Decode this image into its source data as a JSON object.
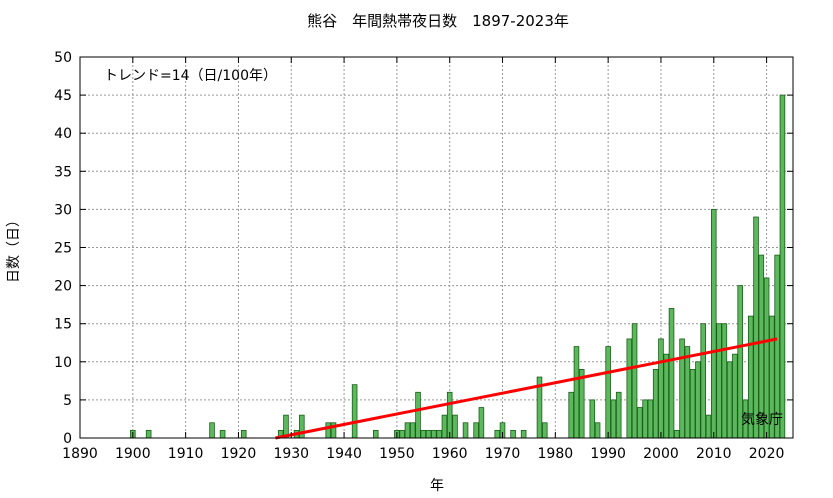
{
  "chart_data": {
    "type": "bar",
    "title": "熊谷　年間熱帯夜日数　1897-2023年",
    "xlabel": "年",
    "ylabel": "日数（日）",
    "annotation": "トレンド=14（日/100年）",
    "credit": "気象庁",
    "xlim": [
      1890,
      2025
    ],
    "ylim": [
      0,
      50
    ],
    "x_ticks": [
      1890,
      1900,
      1910,
      1920,
      1930,
      1940,
      1950,
      1960,
      1970,
      1980,
      1990,
      2000,
      2010,
      2020
    ],
    "y_ticks": [
      0,
      5,
      10,
      15,
      20,
      25,
      30,
      35,
      40,
      45,
      50
    ],
    "grid": "dashed",
    "bar_color": "#5cb85c",
    "bar_edge_color": "#1a5e1a",
    "trend_color": "#ff0000",
    "series": [
      {
        "values": [
          [
            1900,
            1
          ],
          [
            1903,
            1
          ],
          [
            1915,
            2
          ],
          [
            1917,
            1
          ],
          [
            1921,
            1
          ],
          [
            1928,
            1
          ],
          [
            1929,
            3
          ],
          [
            1931,
            1
          ],
          [
            1932,
            3
          ],
          [
            1937,
            2
          ],
          [
            1938,
            2
          ],
          [
            1942,
            7
          ],
          [
            1946,
            1
          ],
          [
            1950,
            1
          ],
          [
            1951,
            1
          ],
          [
            1952,
            2
          ],
          [
            1953,
            2
          ],
          [
            1954,
            6
          ],
          [
            1955,
            1
          ],
          [
            1956,
            1
          ],
          [
            1957,
            1
          ],
          [
            1958,
            1
          ],
          [
            1959,
            3
          ],
          [
            1960,
            6
          ],
          [
            1961,
            3
          ],
          [
            1963,
            2
          ],
          [
            1965,
            2
          ],
          [
            1966,
            4
          ],
          [
            1969,
            1
          ],
          [
            1970,
            2
          ],
          [
            1972,
            1
          ],
          [
            1974,
            1
          ],
          [
            1977,
            8
          ],
          [
            1978,
            2
          ],
          [
            1983,
            6
          ],
          [
            1984,
            12
          ],
          [
            1985,
            9
          ],
          [
            1987,
            5
          ],
          [
            1988,
            2
          ],
          [
            1990,
            12
          ],
          [
            1991,
            5
          ],
          [
            1992,
            6
          ],
          [
            1994,
            13
          ],
          [
            1995,
            15
          ],
          [
            1996,
            4
          ],
          [
            1997,
            5
          ],
          [
            1998,
            5
          ],
          [
            1999,
            9
          ],
          [
            2000,
            13
          ],
          [
            2001,
            11
          ],
          [
            2002,
            17
          ],
          [
            2003,
            1
          ],
          [
            2004,
            13
          ],
          [
            2005,
            12
          ],
          [
            2006,
            9
          ],
          [
            2007,
            10
          ],
          [
            2008,
            15
          ],
          [
            2009,
            3
          ],
          [
            2010,
            30
          ],
          [
            2011,
            15
          ],
          [
            2012,
            15
          ],
          [
            2013,
            10
          ],
          [
            2014,
            11
          ],
          [
            2015,
            20
          ],
          [
            2016,
            5
          ],
          [
            2017,
            16
          ],
          [
            2018,
            29
          ],
          [
            2019,
            24
          ],
          [
            2020,
            21
          ],
          [
            2021,
            16
          ],
          [
            2022,
            24
          ],
          [
            2023,
            45
          ]
        ]
      }
    ],
    "trend_line": {
      "x": [
        1927,
        2022
      ],
      "y": [
        0,
        13
      ]
    }
  }
}
